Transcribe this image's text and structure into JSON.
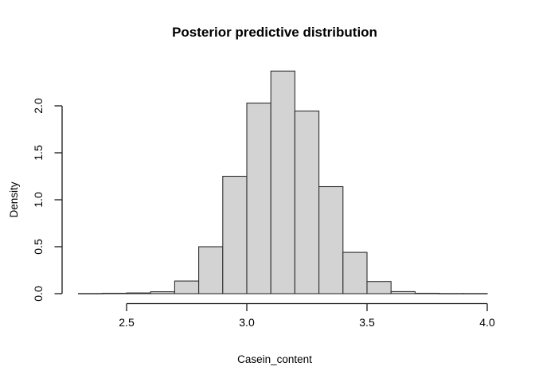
{
  "chart_data": {
    "type": "bar",
    "subtype": "histogram",
    "title": "Posterior predictive distribution",
    "xlabel": "Casein_content",
    "ylabel": "Density",
    "breaks": [
      2.3,
      2.4,
      2.5,
      2.6,
      2.7,
      2.8,
      2.9,
      3.0,
      3.1,
      3.2,
      3.3,
      3.4,
      3.5,
      3.6,
      3.7,
      3.8,
      3.9,
      4.0
    ],
    "densities": [
      0.002,
      0.004,
      0.008,
      0.02,
      0.135,
      0.5,
      1.25,
      2.03,
      2.37,
      1.945,
      1.14,
      0.44,
      0.13,
      0.022,
      0.004,
      0.002,
      0.002
    ],
    "x_ticks": {
      "values": [
        2.5,
        3.0,
        3.5,
        4.0
      ],
      "labels": [
        "2.5",
        "3.0",
        "3.5",
        "4.0"
      ]
    },
    "y_ticks": {
      "values": [
        0,
        0.5,
        1,
        1.5,
        2
      ],
      "labels": [
        "0.0",
        "0.5",
        "1.0",
        "1.5",
        "2.0"
      ]
    },
    "xlim": [
      2.3,
      4.0
    ],
    "ylim": [
      0,
      2.37
    ],
    "grid": false,
    "legend": null,
    "colors": {
      "bar_fill": "#d3d3d3",
      "bar_border": "#2f2f2f",
      "axis": "#1a1a1a",
      "text": "#000000",
      "background": "#ffffff"
    }
  }
}
